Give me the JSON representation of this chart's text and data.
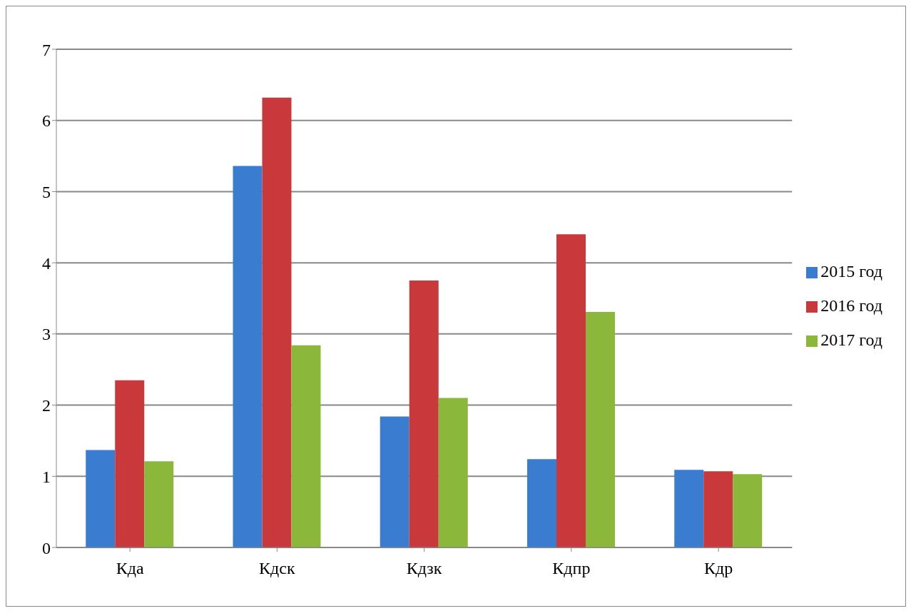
{
  "chart_data": {
    "type": "bar",
    "categories": [
      "Кда",
      "Кдск",
      "Кдзк",
      "Кдпр",
      "Кдр"
    ],
    "series": [
      {
        "name": "2015 год",
        "color": "#3a7dd0",
        "values": [
          1.37,
          5.36,
          1.84,
          1.24,
          1.09
        ]
      },
      {
        "name": "2016 год",
        "color": "#c9383a",
        "values": [
          2.35,
          6.32,
          3.75,
          4.4,
          1.07
        ]
      },
      {
        "name": "2017 год",
        "color": "#8bb83a",
        "values": [
          1.21,
          2.84,
          2.1,
          3.31,
          1.03
        ]
      }
    ],
    "ylim": [
      0,
      7
    ],
    "yticks": [
      0,
      1,
      2,
      3,
      4,
      5,
      6,
      7
    ],
    "grid": "y",
    "legend": "right"
  }
}
